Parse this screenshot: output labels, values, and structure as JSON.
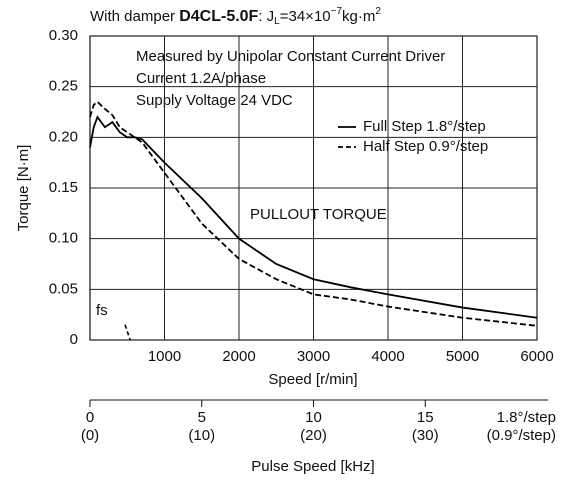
{
  "chart_data": {
    "type": "line",
    "title": [
      "With damper ",
      "D4CL-5.0F",
      ": J",
      "L",
      "=34×10",
      "−7",
      "kg·m",
      "2"
    ],
    "annotations": [
      "Measured by Unipolar Constant Current Driver",
      "Current 1.2A/phase",
      "Supply Voltage 24 VDC",
      "PULLOUT TORQUE",
      "fs"
    ],
    "xlabel": "Speed [r/min]",
    "ylabel": "Torque [N·m]",
    "xlim": [
      0,
      6000
    ],
    "ylim": [
      0,
      0.3
    ],
    "xticks": [
      1000,
      2000,
      3000,
      4000,
      5000,
      6000
    ],
    "yticks": [
      0,
      0.05,
      {
        "value": 0.1,
        "label": "0.10"
      },
      0.15,
      {
        "value": 0.2,
        "label": "0.20"
      },
      0.25,
      {
        "value": 0.3,
        "label": "0.30"
      }
    ],
    "grid": true,
    "series": [
      {
        "name": "Full Step 1.8°/step",
        "color": "#000000",
        "style": "solid",
        "x": [
          0,
          50,
          100,
          200,
          300,
          400,
          500,
          600,
          700,
          1000,
          1500,
          2000,
          2500,
          3000,
          3500,
          4000,
          5000,
          6000
        ],
        "values": [
          0.19,
          0.21,
          0.22,
          0.21,
          0.215,
          0.205,
          0.2,
          0.2,
          0.198,
          0.175,
          0.14,
          0.1,
          0.075,
          0.06,
          0.052,
          0.045,
          0.032,
          0.022
        ]
      },
      {
        "name": "Half Step 0.9°/step",
        "color": "#000000",
        "style": "dashed",
        "x": [
          0,
          50,
          100,
          200,
          300,
          400,
          500,
          600,
          700,
          1000,
          1500,
          2000,
          2500,
          3000,
          3500,
          4000,
          5000,
          6000
        ],
        "values": [
          0.22,
          0.232,
          0.235,
          0.228,
          0.222,
          0.21,
          0.205,
          0.2,
          0.195,
          0.165,
          0.115,
          0.08,
          0.06,
          0.045,
          0.04,
          0.033,
          0.022,
          0.014
        ]
      }
    ],
    "fs_line": {
      "x": [
        470,
        540
      ],
      "values": [
        0.015,
        0
      ]
    },
    "x2label": "Pulse Speed [kHz]",
    "x2lim": [
      0,
      20
    ],
    "x2ticks": [
      0,
      5,
      10,
      15
    ],
    "x2ticks_sub": [
      "(0)",
      "(10)",
      "(20)",
      "(30)"
    ],
    "x2end_labels": [
      "1.8°/step",
      "(0.9°/step)"
    ]
  }
}
